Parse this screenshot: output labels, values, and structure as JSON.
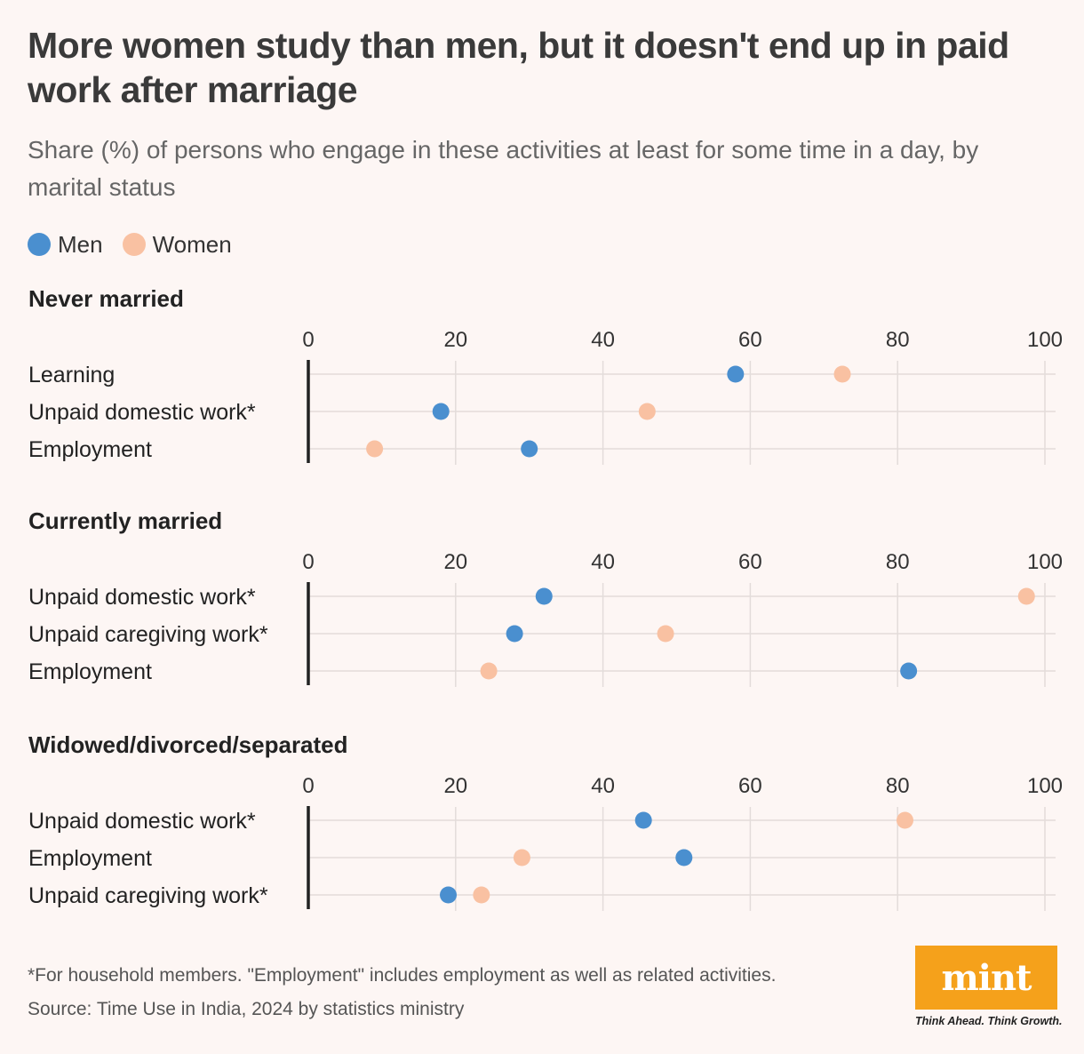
{
  "title": "More women study than men, but it doesn't end up in paid work after marriage",
  "subtitle": "Share (%) of persons who engage in these activities at least for some time in a day, by marital status",
  "legend": {
    "men": "Men",
    "women": "Women"
  },
  "colors": {
    "men": "#4a8fcf",
    "women": "#f9c1a2",
    "grid": "#e3dcda",
    "axis": "#222222"
  },
  "footnote": "*For household members. \"Employment\" includes employment as well as related activities.",
  "source": "Source: Time Use in India, 2024 by statistics ministry",
  "logo": {
    "name": "mint",
    "tagline": "Think Ahead. Think Growth."
  },
  "chart_data": [
    {
      "type": "dot",
      "title": "Never married",
      "xlim": [
        0,
        100
      ],
      "ticks": [
        0,
        20,
        40,
        60,
        80,
        100
      ],
      "categories": [
        "Learning",
        "Unpaid domestic work*",
        "Employment"
      ],
      "series": [
        {
          "name": "Men",
          "values": [
            58,
            18,
            30
          ]
        },
        {
          "name": "Women",
          "values": [
            72.5,
            46,
            9
          ]
        }
      ]
    },
    {
      "type": "dot",
      "title": "Currently married",
      "xlim": [
        0,
        100
      ],
      "ticks": [
        0,
        20,
        40,
        60,
        80,
        100
      ],
      "categories": [
        "Unpaid domestic work*",
        "Unpaid caregiving work*",
        "Employment"
      ],
      "series": [
        {
          "name": "Men",
          "values": [
            32,
            28,
            81.5
          ]
        },
        {
          "name": "Women",
          "values": [
            97.5,
            48.5,
            24.5
          ]
        }
      ]
    },
    {
      "type": "dot",
      "title": "Widowed/divorced/separated",
      "xlim": [
        0,
        100
      ],
      "ticks": [
        0,
        20,
        40,
        60,
        80,
        100
      ],
      "categories": [
        "Unpaid domestic work*",
        "Employment",
        "Unpaid caregiving work*"
      ],
      "series": [
        {
          "name": "Men",
          "values": [
            45.5,
            51,
            19
          ]
        },
        {
          "name": "Women",
          "values": [
            81,
            29,
            23.5
          ]
        }
      ]
    }
  ]
}
